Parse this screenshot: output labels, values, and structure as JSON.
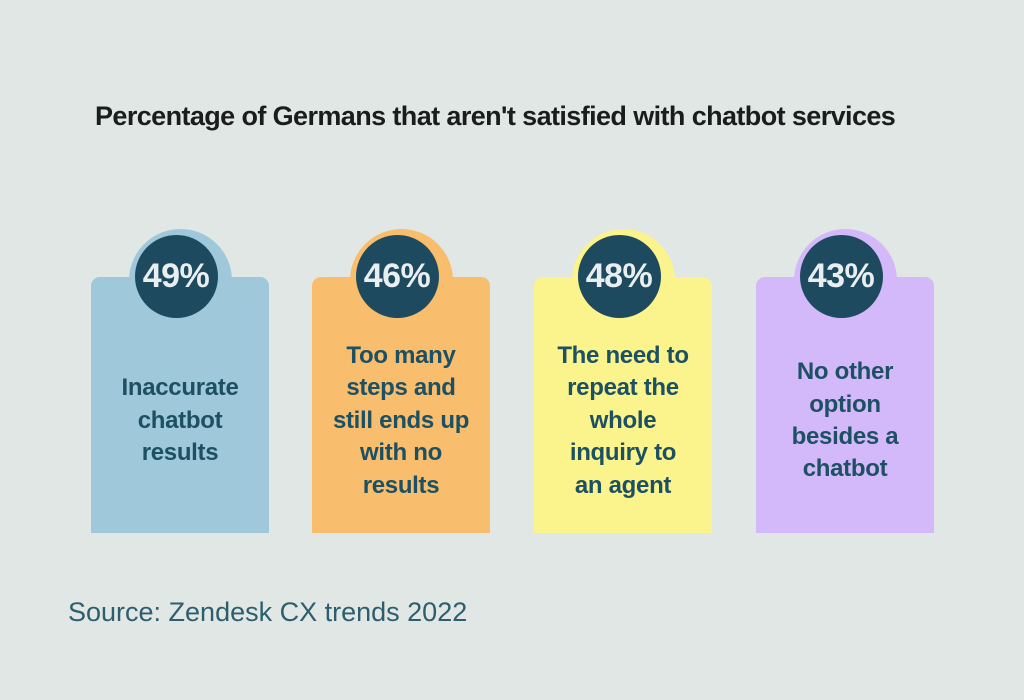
{
  "title": "Percentage of Germans that aren't satisfied with chatbot services",
  "source": "Source: Zendesk CX trends 2022",
  "colors": {
    "background": "#e0e7e4",
    "badge_circle": "#1d4a5e",
    "percent_text": "#e9eff1",
    "card_text": "#1d5063",
    "title_text": "#1b1d1d",
    "source_text": "#2e5d6e"
  },
  "cards": [
    {
      "percent": "49%",
      "label": "Inaccurate\nchatbot\nresults",
      "color": "#9fc8da"
    },
    {
      "percent": "46%",
      "label": "Too many\nsteps and\nstill ends up\nwith no\nresults",
      "color": "#f8bd6d"
    },
    {
      "percent": "48%",
      "label": "The need to\nrepeat the\nwhole\ninquiry to\nan agent",
      "color": "#fbf48c"
    },
    {
      "percent": "43%",
      "label": "No other\noption\nbesides a\nchatbot",
      "color": "#d3b9fa"
    }
  ],
  "chart_data": {
    "type": "bar",
    "title": "Percentage of Germans that aren't satisfied with chatbot services",
    "categories": [
      "Inaccurate chatbot results",
      "Too many steps and still ends up with no results",
      "The need to repeat the whole inquiry to an agent",
      "No other option besides a chatbot"
    ],
    "values": [
      49,
      46,
      48,
      43
    ],
    "unit": "%",
    "xlabel": "",
    "ylabel": "",
    "legend": "none",
    "source": "Source: Zendesk CX trends 2022"
  }
}
